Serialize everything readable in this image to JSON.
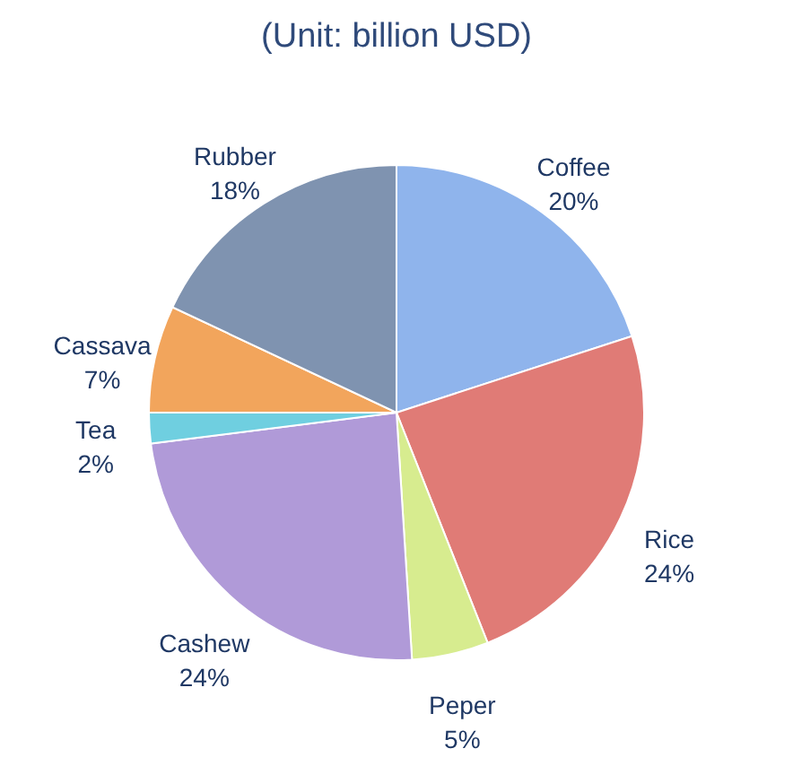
{
  "chart_data": {
    "type": "pie",
    "title": "(Unit: billion USD)",
    "categories": [
      "Coffee",
      "Rice",
      "Peper",
      "Cashew",
      "Tea",
      "Cassava",
      "Rubber"
    ],
    "values": [
      20,
      24,
      5,
      24,
      2,
      7,
      18
    ],
    "value_labels": [
      "20%",
      "24%",
      "5%",
      "24%",
      "2%",
      "7%",
      "18%"
    ],
    "colors": [
      "#8fb4ec",
      "#e07b76",
      "#d7ec8f",
      "#b09ad8",
      "#6fcfe0",
      "#f2a55c",
      "#7f93b0"
    ]
  }
}
